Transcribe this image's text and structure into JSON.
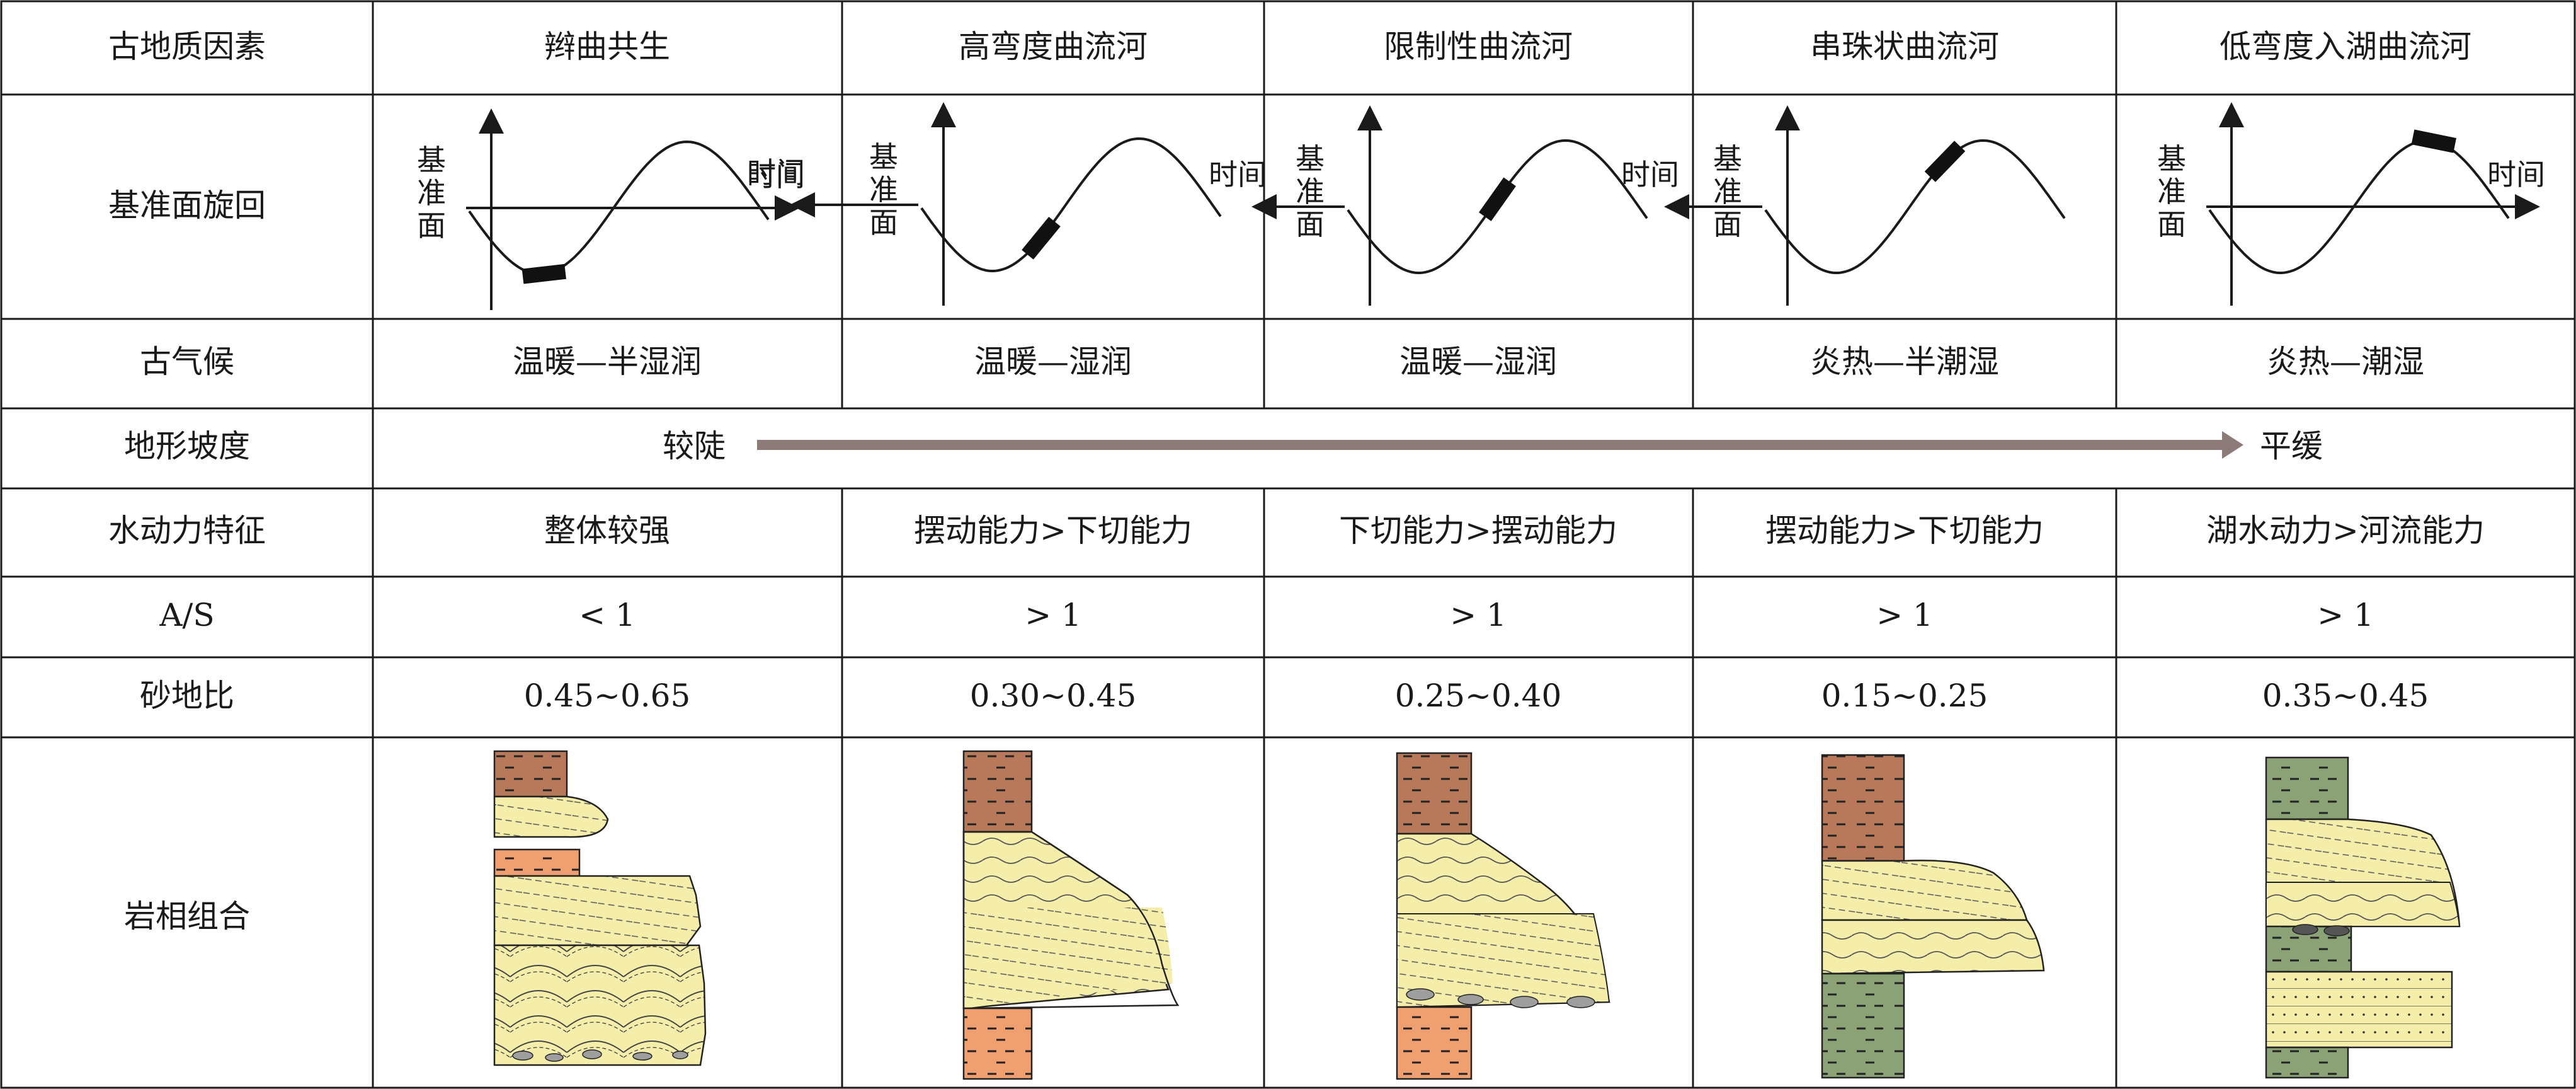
{
  "rows": {
    "header_label": "古地质因素",
    "cycle_label": "基准面旋回",
    "climate_label": "古气候",
    "slope_label": "地形坡度",
    "hydro_label": "水动力特征",
    "as_label": "A/S",
    "sand_label": "砂地比",
    "litho_label": "岩相组合"
  },
  "axis_labels": {
    "y": "基准面",
    "x": "时间"
  },
  "slope": {
    "start": "较陡",
    "end": "平缓"
  },
  "columns": [
    {
      "name": "辫曲共生",
      "climate": "温暖—半湿润",
      "hydro": "整体较强",
      "as": "< 1",
      "sand_ratio": "0.45~0.65",
      "marker": "trough"
    },
    {
      "name": "高弯度曲流河",
      "climate": "温暖—湿润",
      "hydro": "摆动能力>下切能力",
      "as": "> 1",
      "sand_ratio": "0.30~0.45",
      "marker": "rising-low"
    },
    {
      "name": "限制性曲流河",
      "climate": "温暖—湿润",
      "hydro": "下切能力>摆动能力",
      "as": "> 1",
      "sand_ratio": "0.25~0.40",
      "marker": "rising-mid"
    },
    {
      "name": "串珠状曲流河",
      "climate": "炎热—半潮湿",
      "hydro": "摆动能力>下切能力",
      "as": "> 1",
      "sand_ratio": "0.15~0.25",
      "marker": "rising-high"
    },
    {
      "name": "低弯度入湖曲流河",
      "climate": "炎热—潮湿",
      "hydro": "湖水动力>河流能力",
      "as": "> 1",
      "sand_ratio": "0.35~0.45",
      "marker": "peak"
    }
  ],
  "colors": {
    "grid": "#1a1a1a",
    "slope_arrow": "#8c7b78",
    "mudstone_brown": "#b7795a",
    "mudstone_orange": "#f0a070",
    "sandstone": "#f4eeaa",
    "green_mud": "#8aa275",
    "pebble": "#9e9e9e"
  }
}
